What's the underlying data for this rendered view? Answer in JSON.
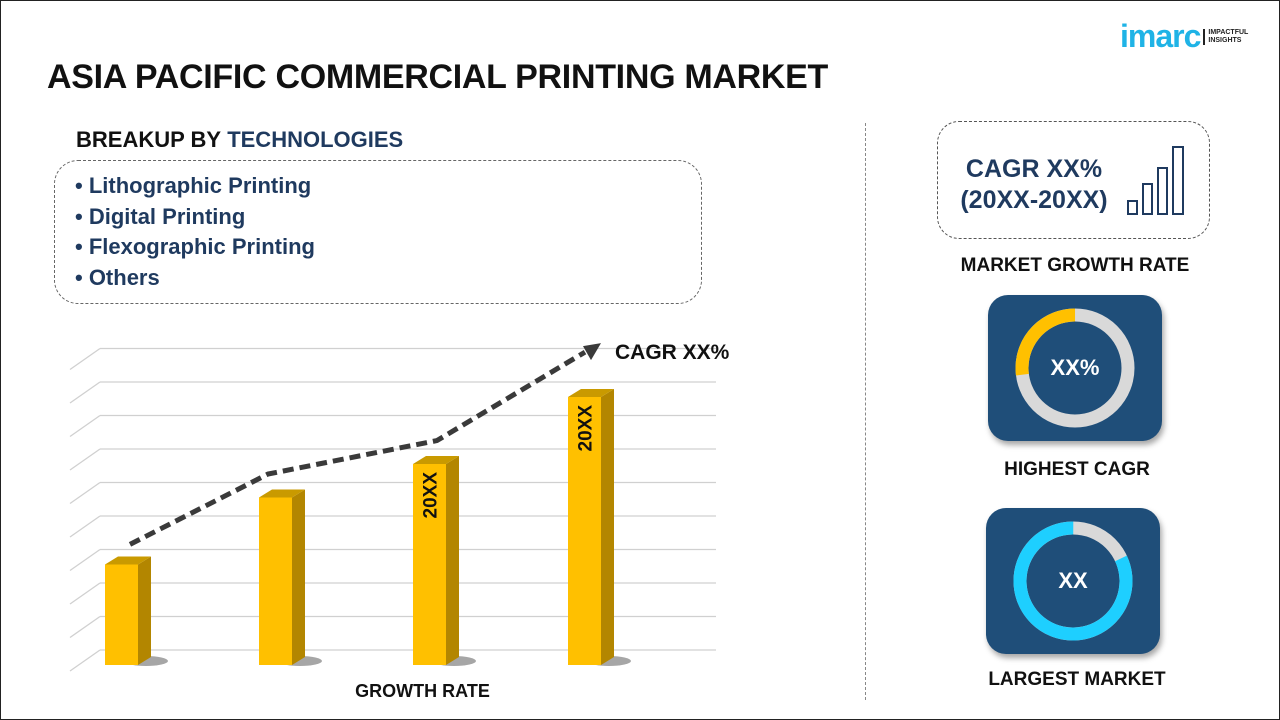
{
  "logo": {
    "word": "imarc",
    "tagline": "IMPACTFUL INSIGHTS"
  },
  "title": "ASIA PACIFIC COMMERCIAL PRINTING MARKET",
  "breakup": {
    "prefix": "BREAKUP BY",
    "highlight": "TECHNOLOGIES",
    "items": [
      "• Lithographic Printing",
      "• Digital Printing",
      "• Flexographic Printing",
      "• Others"
    ]
  },
  "chart_data": {
    "type": "bar",
    "categories": [
      "",
      "",
      "",
      ""
    ],
    "values": [
      3,
      5,
      6,
      8
    ],
    "bar_labels": [
      "",
      "",
      "20XX",
      "20XX"
    ],
    "trend_line": [
      3.6,
      5.7,
      6.7,
      9.4
    ],
    "trend_label": "CAGR XX%",
    "xlabel": "GROWTH RATE",
    "ylim": [
      0,
      9
    ],
    "grid": true,
    "bar_color": "#ffc000",
    "bar_side_color": "#b38600"
  },
  "growth": {
    "line1": "CAGR XX%",
    "line2": "(20XX-20XX)",
    "label": "MARKET GROWTH RATE",
    "icon": "bar-signal-icon"
  },
  "highest": {
    "value": "XX%",
    "label": "HIGHEST CAGR",
    "share": 0.27,
    "color": "#ffc000"
  },
  "largest": {
    "value": "XX",
    "label": "LARGEST MARKET",
    "share": 0.82,
    "color": "#1ecfff"
  },
  "colors": {
    "navy": "#1f4e79",
    "text_blue": "#1f3a5f",
    "ring_gray": "#d9d9d9"
  }
}
